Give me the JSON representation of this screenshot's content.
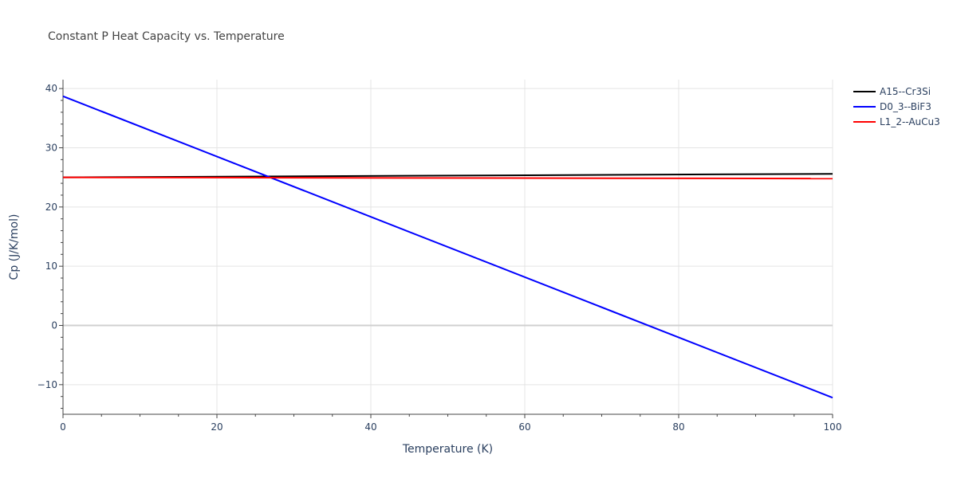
{
  "chart_data": {
    "type": "line",
    "title": "Constant P Heat Capacity vs. Temperature",
    "xlabel": "Temperature (K)",
    "ylabel": "Cp (J/K/mol)",
    "xlim": [
      0,
      100
    ],
    "ylim": [
      -15,
      41.5
    ],
    "x_ticks": [
      0,
      20,
      40,
      60,
      80,
      100
    ],
    "y_ticks": [
      -10,
      0,
      10,
      20,
      30,
      40
    ],
    "y_tick_labels": [
      "−10",
      "0",
      "10",
      "20",
      "30",
      "40"
    ],
    "grid": true,
    "legend_position": "top-right",
    "series": [
      {
        "name": "A15--Cr3Si",
        "color": "#000000",
        "x": [
          0,
          100
        ],
        "y": [
          25.0,
          25.6
        ]
      },
      {
        "name": "D0_3--BiF3",
        "color": "#0000ff",
        "x": [
          0,
          100
        ],
        "y": [
          38.7,
          -12.2
        ]
      },
      {
        "name": "L1_2--AuCu3",
        "color": "#ff0000",
        "x": [
          0,
          100
        ],
        "y": [
          25.0,
          24.8
        ]
      }
    ]
  }
}
